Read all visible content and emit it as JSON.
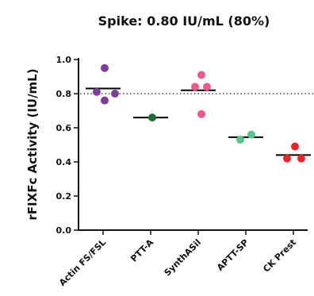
{
  "chart_data": {
    "type": "scatter",
    "title": "Spike: 0.80 IU/mL (80%)",
    "ylabel": "rFIXFc Activity (IU/mL)",
    "xlabel": "",
    "ylim": [
      0.0,
      1.0
    ],
    "yticks": [
      0.0,
      0.2,
      0.4,
      0.6,
      0.8,
      1.0
    ],
    "ytick_labels": [
      "0.0",
      "0.2",
      "0.4",
      "0.6",
      "0.8",
      "1.0"
    ],
    "reference_line": 0.8,
    "grid": false,
    "categories": [
      "Actin FS/FSL",
      "PTT-A",
      "SynthASil",
      "APTT-SP",
      "CK Prest"
    ],
    "series": [
      {
        "color": "#7b3f99",
        "values": [
          0.95,
          0.81,
          0.76,
          0.8
        ],
        "mean": 0.83
      },
      {
        "color": "#1f6b35",
        "values": [
          0.66
        ],
        "mean": 0.66
      },
      {
        "color": "#ec5a8c",
        "values": [
          0.91,
          0.84,
          0.84,
          0.68
        ],
        "mean": 0.82
      },
      {
        "color": "#57c58c",
        "values": [
          0.53,
          0.56
        ],
        "mean": 0.545
      },
      {
        "color": "#e8262a",
        "values": [
          0.49,
          0.42,
          0.42
        ],
        "mean": 0.44
      }
    ]
  }
}
